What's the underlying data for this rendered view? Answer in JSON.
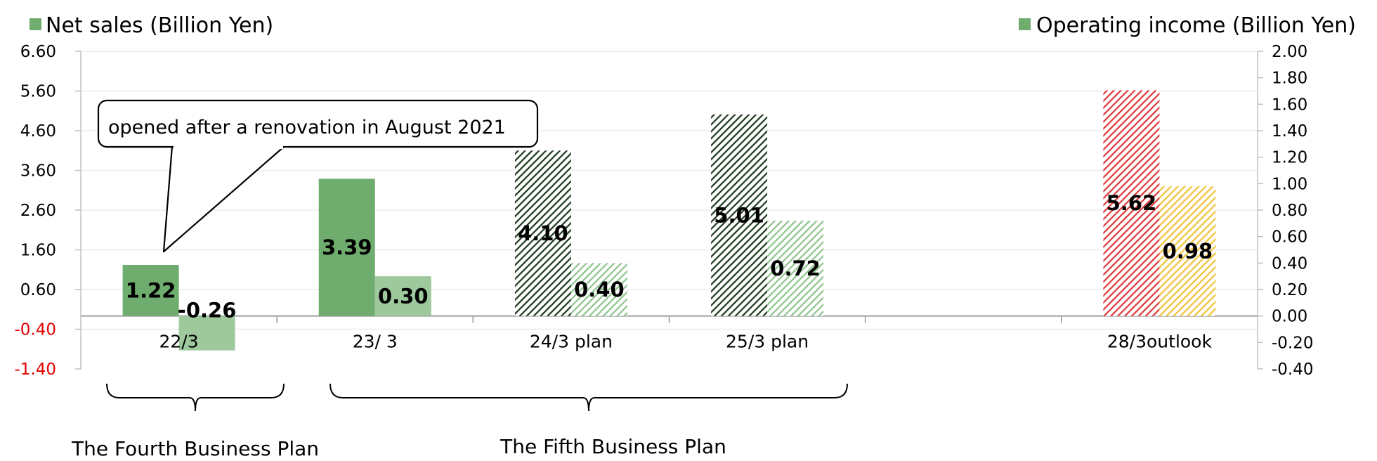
{
  "chart_data": {
    "type": "bar",
    "categories": [
      "22/3",
      "23/ 3",
      "24/3 plan",
      "25/3 plan",
      "28/3outlook"
    ],
    "series": [
      {
        "name": "Net sales (Billion Yen)",
        "axis": "left",
        "values": [
          1.22,
          3.39,
          4.1,
          5.01,
          5.62
        ],
        "labels": [
          "1.22",
          "3.39",
          "4.10",
          "5.01",
          "5.62"
        ],
        "colors": [
          "#6fad6e",
          "#6fad6e",
          "#1e3a1e",
          "#1e3a1e",
          "#e03a3a"
        ],
        "styles": [
          "solid",
          "solid",
          "hatch",
          "hatch",
          "hatch"
        ]
      },
      {
        "name": "Operating income (Billion Yen)",
        "axis": "right",
        "values": [
          -0.26,
          0.3,
          0.4,
          0.72,
          0.98
        ],
        "labels": [
          "-0.26",
          "0.30",
          "0.40",
          "0.72",
          "0.98"
        ],
        "colors": [
          "#9dc99c",
          "#9dc99c",
          "#8fc48e",
          "#8fc48e",
          "#f2c23c"
        ],
        "styles": [
          "solid",
          "solid",
          "hatch",
          "hatch",
          "hatch"
        ]
      }
    ],
    "left_axis": {
      "min": -1.4,
      "max": 6.6,
      "ticks": [
        "6.60",
        "5.60",
        "4.60",
        "3.60",
        "2.60",
        "1.60",
        "0.60",
        "-0.40",
        "-1.40"
      ],
      "tick_values": [
        6.6,
        5.6,
        4.6,
        3.6,
        2.6,
        1.6,
        0.6,
        -0.4,
        -1.4
      ],
      "negative_tick_color": "#e00000"
    },
    "right_axis": {
      "min": -0.4,
      "max": 2.0,
      "ticks": [
        "2.00",
        "1.80",
        "1.60",
        "1.40",
        "1.20",
        "1.00",
        "0.80",
        "0.60",
        "0.40",
        "0.20",
        "0.00",
        "-0.20",
        "-0.40"
      ],
      "tick_values": [
        2.0,
        1.8,
        1.6,
        1.4,
        1.2,
        1.0,
        0.8,
        0.6,
        0.4,
        0.2,
        0.0,
        -0.2,
        -0.4
      ]
    },
    "legend": {
      "left": "Net sales (Billion Yen)",
      "right": "Operating income (Billion Yen)",
      "color": "#6fad6e"
    },
    "annotation": "opened after a renovation in August 2021",
    "groups": [
      {
        "label": "The Fourth Business Plan",
        "from": 0,
        "to": 0
      },
      {
        "label": "The Fifth Business Plan",
        "from": 1,
        "to": 3
      }
    ],
    "grid": true
  }
}
